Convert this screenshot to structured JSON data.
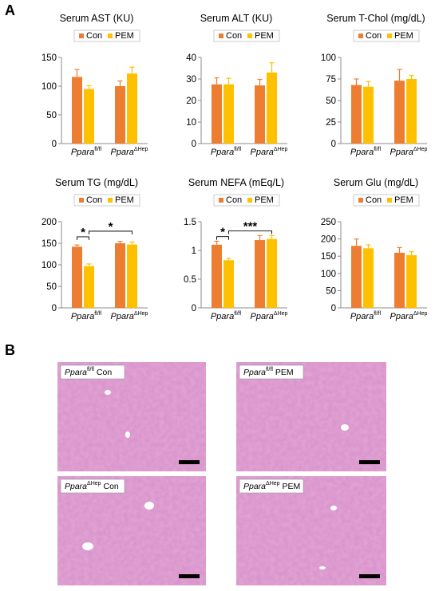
{
  "figure": {
    "panel_a_label": "A",
    "panel_b_label": "B",
    "colors": {
      "con": "#ED7D31",
      "pem": "#FFC000",
      "axis": "#8c8c8c",
      "tissue": "#e2a7d4"
    },
    "groups": [
      {
        "main": "Ppara",
        "sup": "fl/fl"
      },
      {
        "main": "Ppara",
        "sup": "ΔHep"
      }
    ]
  },
  "chart_data": [
    {
      "type": "bar",
      "title": "Serum AST (KU)",
      "legend": [
        "Con",
        "PEM"
      ],
      "legend_position": "top",
      "categories": [
        "Pparafl/fl",
        "PparaΔHep"
      ],
      "ylim": [
        0,
        150
      ],
      "yticks": [
        "0",
        "50",
        "100",
        "150"
      ],
      "grid": false,
      "series": [
        {
          "name": "Con",
          "values": [
            116,
            100
          ],
          "errors": [
            13,
            9
          ]
        },
        {
          "name": "PEM",
          "values": [
            95,
            122
          ],
          "errors": [
            6,
            11
          ]
        }
      ],
      "annotations": []
    },
    {
      "type": "bar",
      "title": "Serum ALT (KU)",
      "legend": [
        "Con",
        "PEM"
      ],
      "legend_position": "top",
      "categories": [
        "Pparafl/fl",
        "PparaΔHep"
      ],
      "ylim": [
        0,
        40
      ],
      "yticks": [
        "0",
        "10",
        "20",
        "30",
        "40"
      ],
      "grid": false,
      "series": [
        {
          "name": "Con",
          "values": [
            27.5,
            27
          ],
          "errors": [
            3,
            2.8
          ]
        },
        {
          "name": "PEM",
          "values": [
            27.5,
            33
          ],
          "errors": [
            2.8,
            4.5
          ]
        }
      ],
      "annotations": []
    },
    {
      "type": "bar",
      "title": "Serum T-Chol (mg/dL)",
      "legend": [
        "Con",
        "PEM"
      ],
      "legend_position": "top",
      "categories": [
        "Pparafl/fl",
        "PparaΔHep"
      ],
      "ylim": [
        0,
        100
      ],
      "yticks": [
        "0",
        "25",
        "50",
        "75",
        "100"
      ],
      "grid": false,
      "series": [
        {
          "name": "Con",
          "values": [
            68,
            73
          ],
          "errors": [
            7,
            13
          ]
        },
        {
          "name": "PEM",
          "values": [
            66,
            75
          ],
          "errors": [
            6,
            4
          ]
        }
      ],
      "annotations": []
    },
    {
      "type": "bar",
      "title": "Serum TG  (mg/dL)",
      "legend": [
        "Con",
        "PEM"
      ],
      "legend_position": "top",
      "categories": [
        "Pparafl/fl",
        "PparaΔHep"
      ],
      "ylim": [
        0,
        200
      ],
      "yticks": [
        "0",
        "50",
        "100",
        "150",
        "200"
      ],
      "grid": false,
      "series": [
        {
          "name": "Con",
          "values": [
            142,
            150
          ],
          "errors": [
            4,
            4
          ]
        },
        {
          "name": "PEM",
          "values": [
            97,
            147
          ],
          "errors": [
            5,
            6
          ]
        }
      ],
      "annotations": [
        {
          "label": "*",
          "from": [
            0,
            0
          ],
          "to": [
            0,
            1
          ],
          "at": 165
        },
        {
          "label": "*",
          "from": [
            0,
            1
          ],
          "to": [
            1,
            1
          ],
          "at": 178
        }
      ]
    },
    {
      "type": "bar",
      "title": "Serum NEFA (mEq/L)",
      "legend": [
        "Con",
        "PEM"
      ],
      "legend_position": "top",
      "categories": [
        "Pparafl/fl",
        "PparaΔHep"
      ],
      "ylim": [
        0,
        1.5
      ],
      "yticks": [
        "0",
        "0.5",
        "1",
        "1.5"
      ],
      "grid": false,
      "series": [
        {
          "name": "Con",
          "values": [
            1.1,
            1.18
          ],
          "errors": [
            0.06,
            0.08
          ]
        },
        {
          "name": "PEM",
          "values": [
            0.83,
            1.2
          ],
          "errors": [
            0.03,
            0.06
          ]
        }
      ],
      "annotations": [
        {
          "label": "*",
          "from": [
            0,
            0
          ],
          "to": [
            0,
            1
          ],
          "at": 1.24
        },
        {
          "label": "***",
          "from": [
            0,
            1
          ],
          "to": [
            1,
            1
          ],
          "at": 1.34
        }
      ]
    },
    {
      "type": "bar",
      "title": "Serum Glu (mg/dL)",
      "legend": [
        "Con",
        "PEM"
      ],
      "legend_position": "top",
      "categories": [
        "Pparafl/fl",
        "PparaΔHep"
      ],
      "ylim": [
        0,
        250
      ],
      "yticks": [
        "0",
        "50",
        "100",
        "150",
        "200",
        "250"
      ],
      "grid": false,
      "series": [
        {
          "name": "Con",
          "values": [
            180,
            160
          ],
          "errors": [
            20,
            15
          ]
        },
        {
          "name": "PEM",
          "values": [
            173,
            153
          ],
          "errors": [
            10,
            10
          ]
        }
      ],
      "annotations": []
    }
  ],
  "histology": [
    {
      "main": "Ppara",
      "sup": "fl/fl",
      "suffix": "Con"
    },
    {
      "main": "Ppara",
      "sup": "fl/fl",
      "suffix": "PEM"
    },
    {
      "main": "Ppara",
      "sup": "ΔHep",
      "suffix": "Con"
    },
    {
      "main": "Ppara",
      "sup": "ΔHep",
      "suffix": "PEM"
    }
  ]
}
